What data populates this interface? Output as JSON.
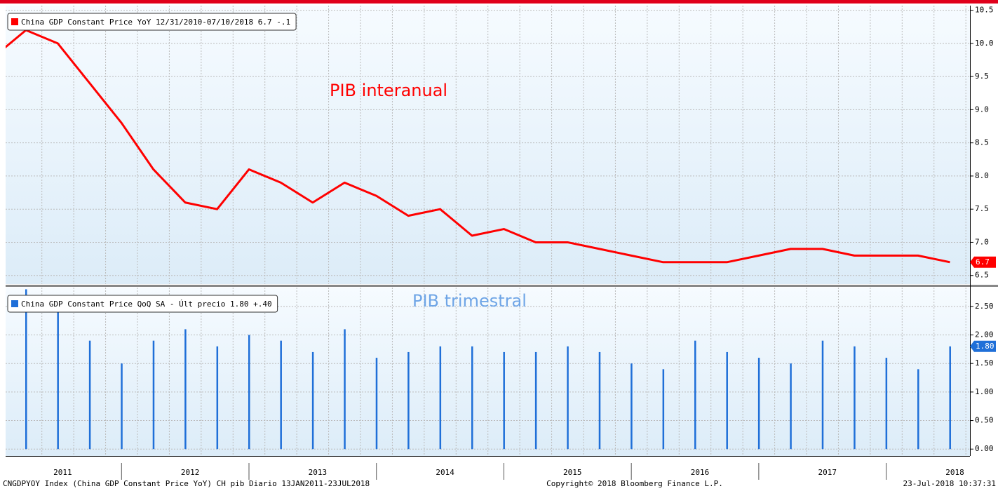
{
  "chart_data": [
    {
      "type": "line",
      "legend": "China GDP Constant Price YoY 12/31/2010-07/10/2018 6.7  -.1",
      "annotation": "PIB interanual",
      "color": "#ff0000",
      "values": [
        9.8,
        10.2,
        10.0,
        9.4,
        8.8,
        8.1,
        7.6,
        7.5,
        8.1,
        7.9,
        7.6,
        7.9,
        7.7,
        7.4,
        7.5,
        7.1,
        7.2,
        7.0,
        7.0,
        6.9,
        6.8,
        6.7,
        6.7,
        6.7,
        6.8,
        6.9,
        6.9,
        6.8,
        6.8,
        6.8,
        6.7
      ],
      "last_label": "6.7",
      "ylim": [
        6.37,
        10.57
      ],
      "yticks": [
        6.5,
        {
          "value": 7,
          "label": "7.0"
        },
        7.5,
        {
          "value": 8,
          "label": "8.0"
        },
        8.5,
        {
          "value": 9,
          "label": "9.0"
        },
        9.5,
        {
          "value": 10,
          "label": "10.0"
        },
        10.5
      ],
      "grid": true
    },
    {
      "type": "bar",
      "legend": "China GDP Constant Price QoQ SA - Últ precio 1.80  +.40",
      "annotation": "PIB trimestral",
      "color": "#1f6fd8",
      "values": [
        2.8,
        2.7,
        1.9,
        1.5,
        1.9,
        2.1,
        1.8,
        2.0,
        1.9,
        1.7,
        2.1,
        1.6,
        1.7,
        1.8,
        1.8,
        1.7,
        1.7,
        1.8,
        1.7,
        1.5,
        1.4,
        1.9,
        1.7,
        1.6,
        1.5,
        1.9,
        1.8,
        1.6,
        1.4,
        1.8
      ],
      "last_label": "1.80",
      "ylim": [
        -0.12,
        2.83
      ],
      "yticks": [
        {
          "value": 0,
          "label": "0.00"
        },
        {
          "value": 0.5,
          "label": "0.50"
        },
        {
          "value": 1,
          "label": "1.00"
        },
        {
          "value": 1.5,
          "label": "1.50"
        },
        {
          "value": 2,
          "label": "2.00"
        },
        {
          "value": 2.5,
          "label": "2.50"
        }
      ],
      "xlabels": [
        "2011",
        "2012",
        "2013",
        "2014",
        "2015",
        "2016",
        "2017",
        "2018"
      ],
      "grid": true
    }
  ],
  "footer": {
    "left": "CNGDPYOY Index (China GDP Constant Price YoY) CH pib  Diario 13JAN2011-23JUL2018",
    "center": "Copyright© 2018 Bloomberg Finance L.P.",
    "right": "23-Jul-2018 10:37:31"
  }
}
